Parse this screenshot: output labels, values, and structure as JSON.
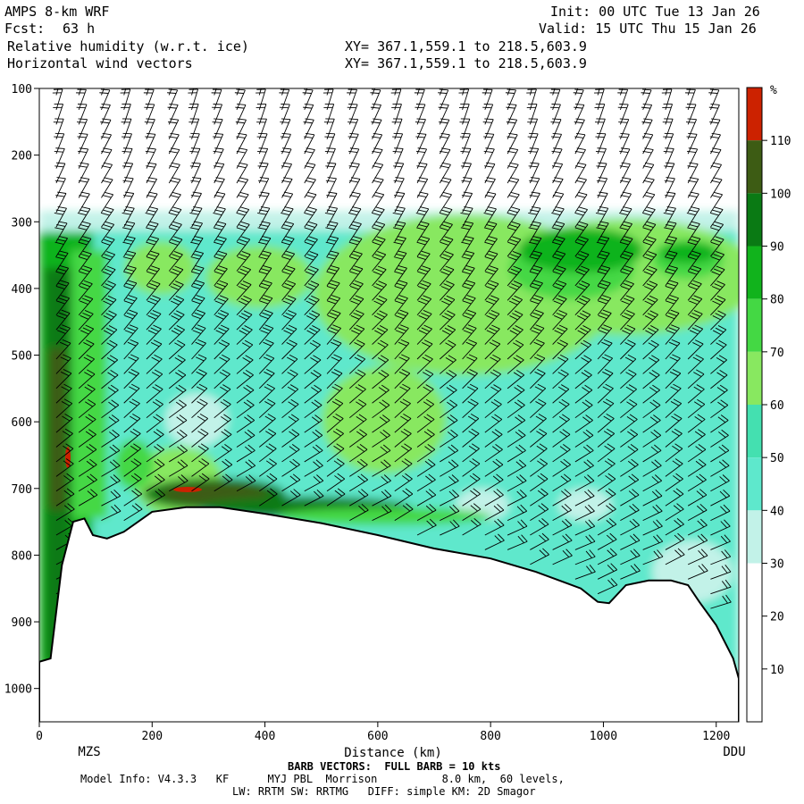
{
  "header": {
    "model": "AMPS 8-km WRF",
    "fcst_label": "Fcst:",
    "fcst_value": "63 h",
    "field1": "Relative humidity (w.r.t. ice)",
    "field2": "Horizontal wind vectors",
    "xy1": "XY= 367.1,559.1 to 218.5,603.9",
    "xy2": "XY= 367.1,559.1 to 218.5,603.9",
    "init": "Init: 00 UTC Tue 13 Jan 26",
    "valid": "Valid: 15 UTC Thu 15 Jan 26"
  },
  "footer": {
    "barb_note": "BARB VECTORS:  FULL BARB = 10 kts",
    "model_info": "Model Info: V4.3.3   KF      MYJ PBL  Morrison          8.0 km,  60 levels,",
    "model_info2": "LW: RRTM SW: RRTMG   DIFF: simple KM: 2D Smagor"
  },
  "chart_data": {
    "type": "heatmap",
    "title": "Relative humidity (w.r.t. ice)",
    "xlabel": "Distance (km)",
    "ylabel": "",
    "xlim": [
      0,
      1240
    ],
    "ylim": [
      1050,
      100
    ],
    "x_ticks": [
      0,
      200,
      400,
      600,
      800,
      1000,
      1200
    ],
    "y_ticks": [
      100,
      200,
      300,
      400,
      500,
      600,
      700,
      800,
      900,
      1000
    ],
    "endpoint_left": "MZS",
    "endpoint_right": "DDU",
    "colorbar": {
      "unit": "%",
      "levels": [
        10,
        20,
        30,
        40,
        50,
        60,
        70,
        80,
        90,
        100,
        110
      ],
      "colors": [
        "#ffffff",
        "#ffffff",
        "#ffffff",
        "#c2f2e8",
        "#5ee8cc",
        "#44e0b0",
        "#88e860",
        "#44d844",
        "#11b31c",
        "#0a7a14",
        "#3d5c14",
        "#cc2200"
      ]
    },
    "terrain_km_hpa": [
      [
        0,
        960
      ],
      [
        20,
        955
      ],
      [
        40,
        815
      ],
      [
        60,
        750
      ],
      [
        80,
        745
      ],
      [
        95,
        770
      ],
      [
        120,
        775
      ],
      [
        150,
        765
      ],
      [
        200,
        735
      ],
      [
        260,
        728
      ],
      [
        320,
        728
      ],
      [
        400,
        738
      ],
      [
        500,
        752
      ],
      [
        600,
        770
      ],
      [
        700,
        790
      ],
      [
        800,
        805
      ],
      [
        880,
        825
      ],
      [
        960,
        850
      ],
      [
        990,
        870
      ],
      [
        1010,
        872
      ],
      [
        1040,
        845
      ],
      [
        1080,
        838
      ],
      [
        1120,
        838
      ],
      [
        1150,
        845
      ],
      [
        1170,
        870
      ],
      [
        1200,
        905
      ],
      [
        1230,
        955
      ],
      [
        1240,
        985
      ]
    ],
    "cloud_top_hpa": 285,
    "wind_barbs": "full barb = 10 kts"
  }
}
